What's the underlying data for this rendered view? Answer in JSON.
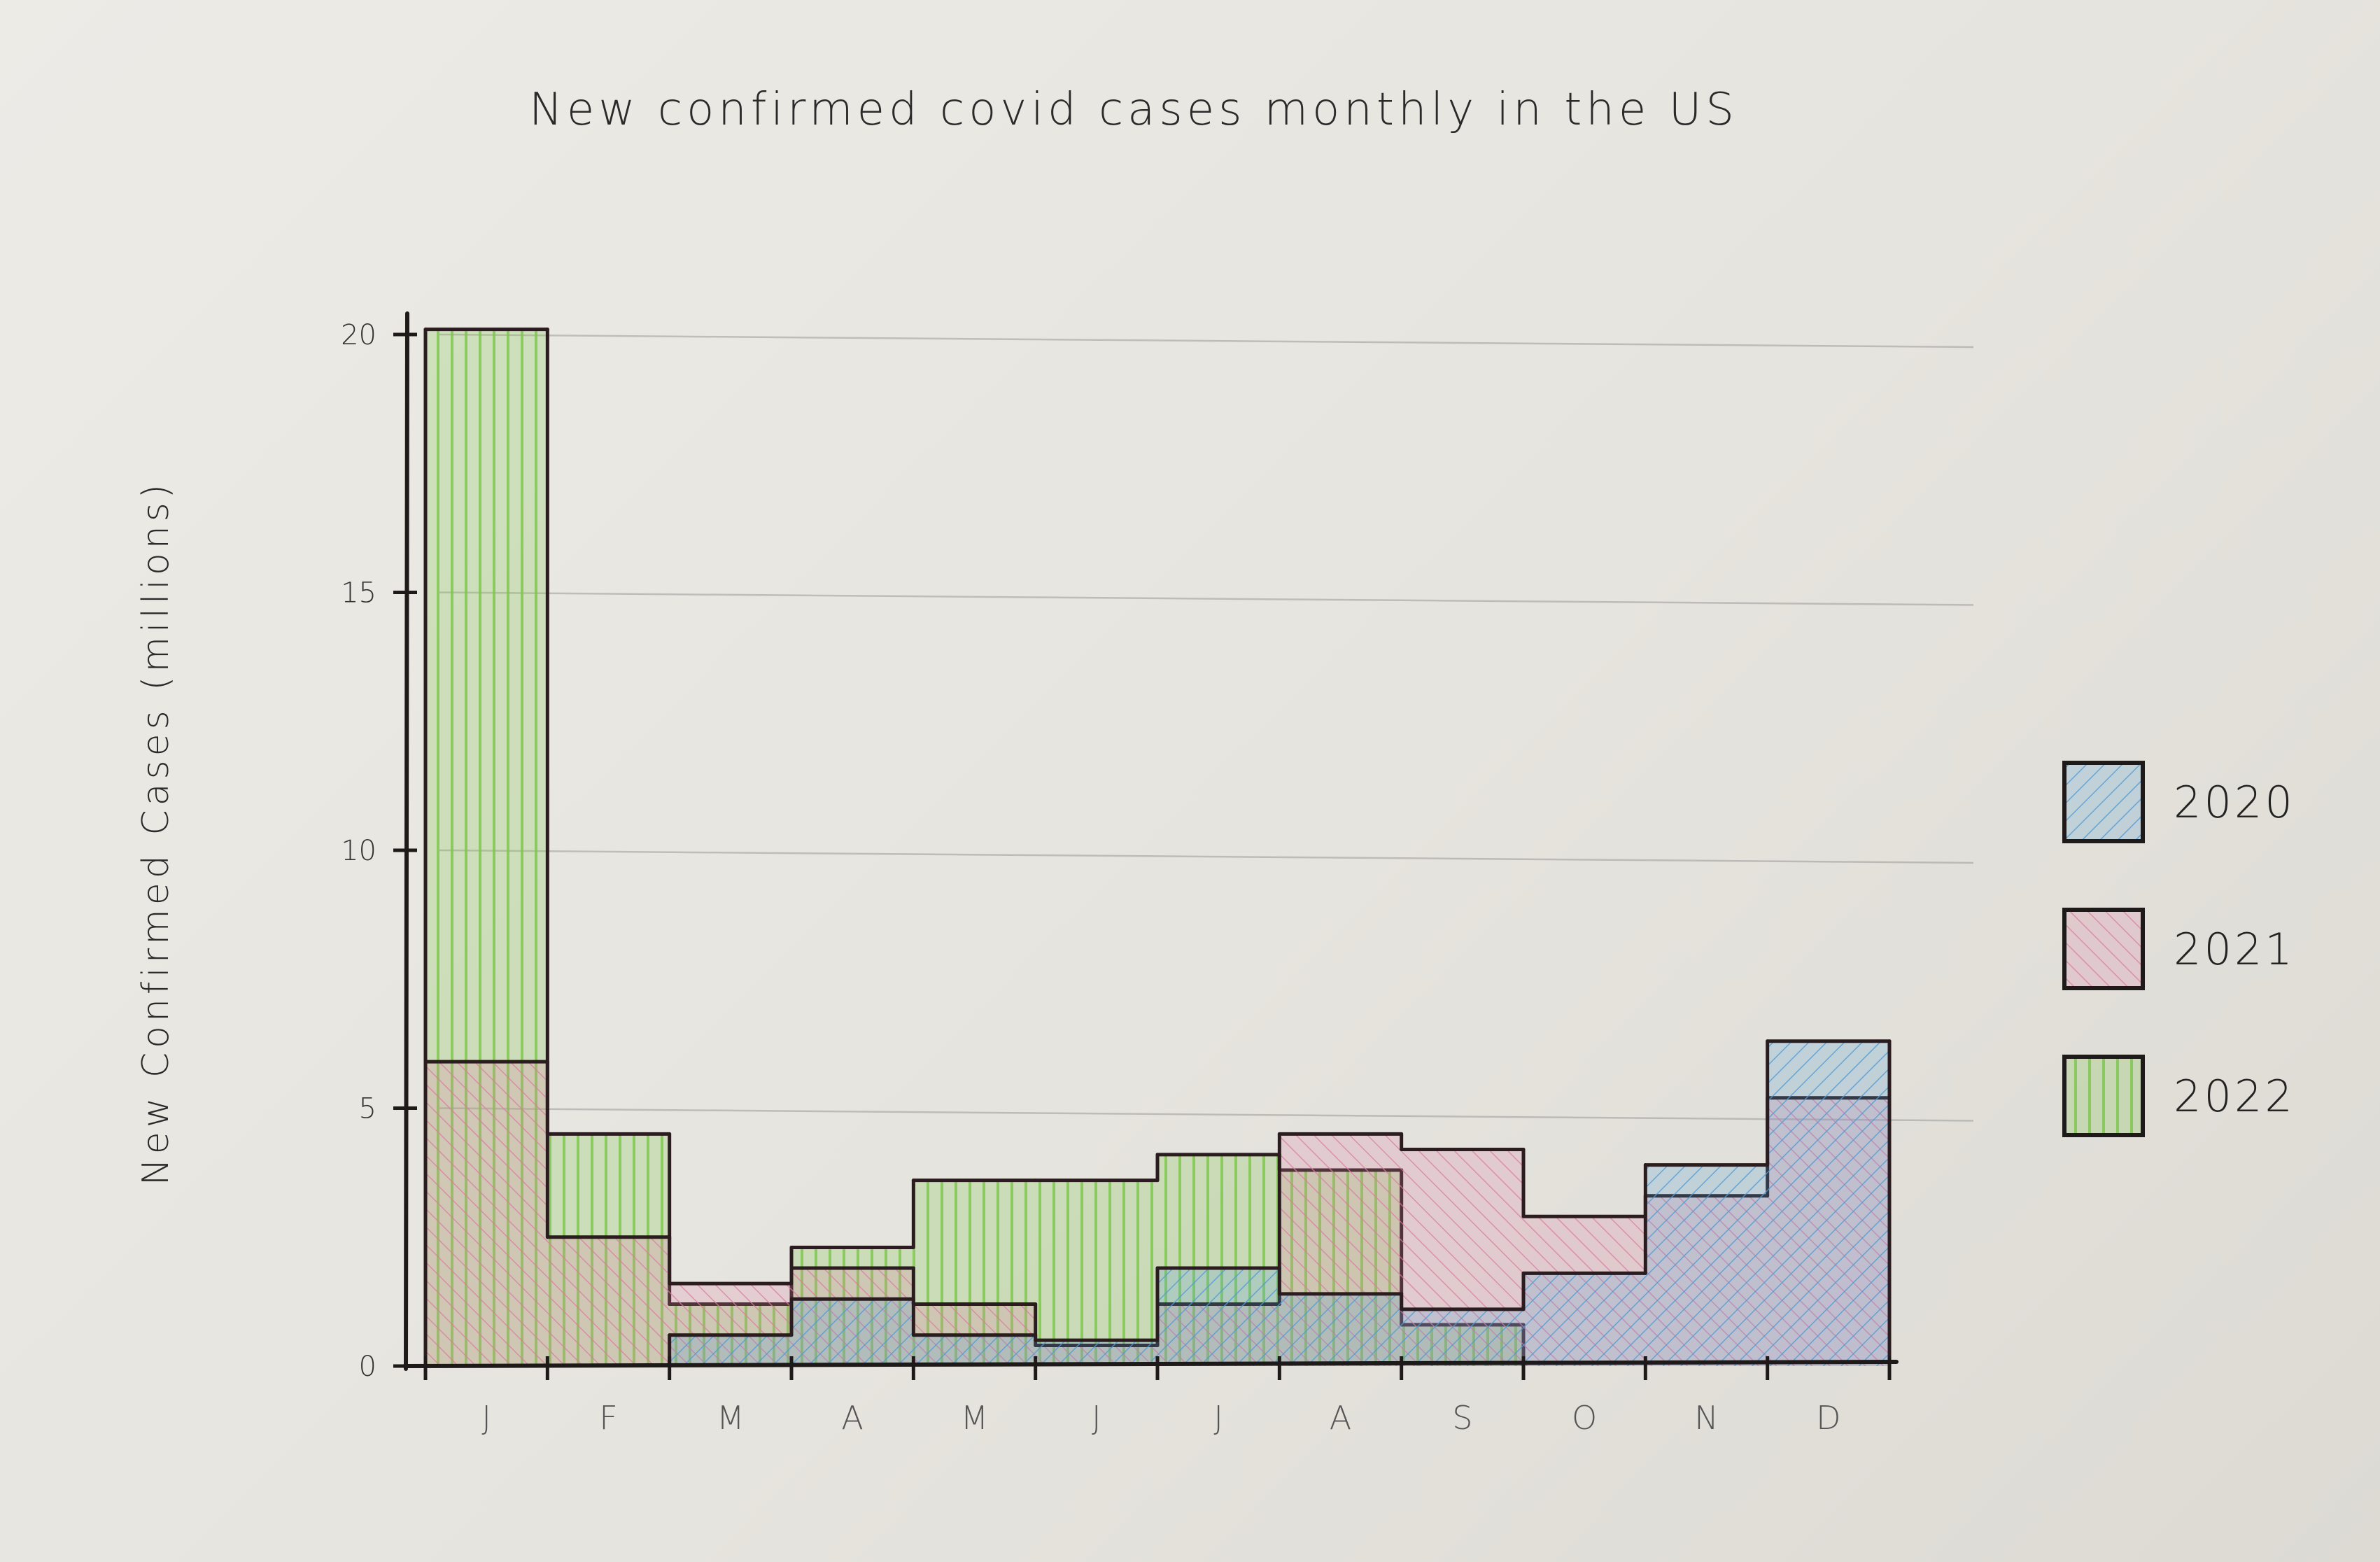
{
  "chart_data": {
    "type": "bar",
    "title": "New confirmed covid cases monthly in the US",
    "xlabel": "",
    "ylabel": "New Confirmed Cases (millions)",
    "categories": [
      "J",
      "F",
      "M",
      "A",
      "M",
      "J",
      "J",
      "A",
      "S",
      "O",
      "N",
      "D"
    ],
    "yticks": [
      "0",
      "5",
      "10",
      "15",
      "20"
    ],
    "ylim": [
      0,
      20.5
    ],
    "grid": true,
    "legend_position": "right",
    "series": [
      {
        "name": "2020",
        "values": [
          0.0,
          0.0,
          0.6,
          1.3,
          0.6,
          0.5,
          1.9,
          1.4,
          1.1,
          1.8,
          3.9,
          6.3
        ],
        "color": "#4f9ad6"
      },
      {
        "name": "2021",
        "values": [
          5.9,
          2.5,
          1.6,
          1.9,
          1.2,
          0.4,
          1.2,
          4.5,
          4.2,
          2.9,
          3.3,
          5.2
        ],
        "color": "#d97aa0"
      },
      {
        "name": "2022",
        "values": [
          20.1,
          4.5,
          1.2,
          2.3,
          3.6,
          3.6,
          4.1,
          3.8,
          0.8,
          0.0,
          0.0,
          0.0
        ],
        "color": "#7cc548"
      }
    ]
  }
}
